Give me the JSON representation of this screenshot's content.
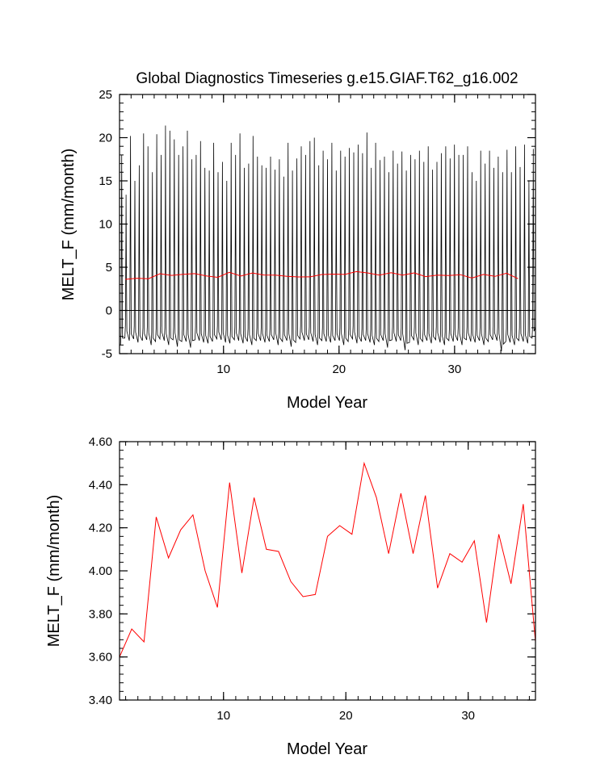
{
  "chart_data": [
    {
      "type": "line",
      "title": "Global Diagnostics Timeseries g.e15.GIAF.T62_g16.002",
      "xlabel": "Model Year",
      "ylabel": "MELT_F (mm/month)",
      "xlim": [
        1,
        37
      ],
      "ylim": [
        -5,
        25
      ],
      "xticks": [
        10,
        20,
        30
      ],
      "xtick_labels": [
        "10",
        "20",
        "30"
      ],
      "yticks": [
        -5,
        0,
        5,
        10,
        15,
        20,
        25
      ],
      "ytick_labels": [
        "-5",
        "0",
        "5",
        "10",
        "15",
        "20",
        "25"
      ],
      "zero_line": 0,
      "monthly_peaks": [
        18.0,
        13.4,
        20.2,
        15.0,
        16.8,
        20.5,
        19.0,
        16.0,
        20.4,
        18.0,
        21.4,
        20.8,
        19.8,
        18.0,
        19.0,
        20.8,
        17.5,
        18.0,
        19.6,
        16.5,
        16.2,
        19.4,
        16.0,
        17.2,
        15.0,
        19.4,
        18.0,
        20.5,
        16.5,
        17.0,
        20.2,
        17.8,
        16.8,
        16.5,
        17.8,
        16.3,
        17.5,
        15.5,
        19.4,
        16.2,
        17.6,
        19.0,
        18.0,
        19.6,
        20.0,
        16.8,
        18.5,
        17.5,
        19.4,
        16.2,
        18.5,
        17.8,
        18.8,
        18.3,
        19.2,
        18.2,
        20.6,
        16.5,
        19.4,
        17.4,
        17.8,
        16.0,
        18.5,
        17.0,
        18.4,
        16.2,
        18.0,
        17.5,
        18.5,
        17.2,
        19.0,
        16.3,
        17.2,
        18.2,
        19.0,
        17.6,
        19.2,
        18.0,
        18.0,
        19.0,
        16.0,
        15.0,
        18.5,
        17.0,
        18.5,
        16.5,
        17.8,
        16.0,
        18.6,
        16.0,
        19.0,
        16.6,
        19.2,
        15.0,
        18.7
      ],
      "monthly_troughs": [
        -4.0,
        -3.2,
        -3.5,
        -3.3,
        -3.7,
        -3.5,
        -3.4,
        -4.0,
        -3.6,
        -3.3,
        -3.5,
        -4.0,
        -3.4,
        -4.2,
        -3.6,
        -3.6,
        -4.3,
        -3.4,
        -3.5,
        -3.7,
        -3.8,
        -3.6,
        -3.3,
        -3.4,
        -3.7,
        -3.8,
        -3.4,
        -3.5,
        -3.8,
        -3.6,
        -4.0,
        -3.5,
        -3.5,
        -3.7,
        -3.6,
        -3.4,
        -4.0,
        -3.6,
        -3.5,
        -4.2,
        -3.7,
        -3.3,
        -3.5,
        -3.4,
        -3.6,
        -4.0,
        -3.5,
        -3.6,
        -3.7,
        -3.5,
        -3.5,
        -4.0,
        -3.6,
        -3.3,
        -3.8,
        -3.6,
        -3.5,
        -3.7,
        -4.0,
        -3.6,
        -3.5,
        -4.3,
        -3.4,
        -3.6,
        -3.5,
        -4.6,
        -3.7,
        -3.4,
        -4.0,
        -3.6,
        -3.5,
        -3.8,
        -3.4,
        -3.7,
        -4.0,
        -3.5,
        -3.6,
        -3.5,
        -4.0,
        -3.4,
        -3.6,
        -3.7,
        -3.5,
        -4.0,
        -3.6,
        -3.4,
        -3.5,
        -4.7,
        -3.6,
        -3.7,
        -4.0,
        -3.5,
        -3.6,
        -3.8,
        -3.2
      ],
      "series": [
        {
          "color": "#ff0000",
          "x": [
            1.5,
            2.5,
            3.5,
            4.5,
            5.5,
            6.5,
            7.5,
            8.5,
            9.5,
            10.5,
            11.5,
            12.5,
            13.5,
            14.5,
            15.5,
            16.5,
            17.5,
            18.5,
            19.5,
            20.5,
            21.5,
            22.5,
            23.5,
            24.5,
            25.5,
            26.5,
            27.5,
            28.5,
            29.5,
            30.5,
            31.5,
            32.5,
            33.5,
            34.5,
            35.5
          ],
          "values": [
            3.6,
            3.73,
            3.67,
            4.25,
            4.06,
            4.19,
            4.26,
            4.0,
            3.83,
            4.41,
            3.99,
            4.34,
            4.1,
            4.09,
            3.95,
            3.88,
            3.89,
            4.16,
            4.21,
            4.17,
            4.5,
            4.34,
            4.08,
            4.36,
            4.08,
            4.35,
            3.92,
            4.08,
            4.04,
            4.14,
            3.76,
            4.17,
            3.94,
            4.31,
            3.67
          ]
        }
      ]
    },
    {
      "type": "line",
      "title": "",
      "xlabel": "Model Year",
      "ylabel": "MELT_F (mm/month)",
      "xlim": [
        1.5,
        35.5
      ],
      "ylim": [
        3.4,
        4.6
      ],
      "xticks": [
        10,
        20,
        30
      ],
      "xtick_labels": [
        "10",
        "20",
        "30"
      ],
      "yticks": [
        3.4,
        3.6,
        3.8,
        4.0,
        4.2,
        4.4,
        4.6
      ],
      "ytick_labels": [
        "3.40",
        "3.60",
        "3.80",
        "4.00",
        "4.20",
        "4.40",
        "4.60"
      ],
      "series": [
        {
          "color": "#ff0000",
          "x": [
            1.5,
            2.5,
            3.5,
            4.5,
            5.5,
            6.5,
            7.5,
            8.5,
            9.5,
            10.5,
            11.5,
            12.5,
            13.5,
            14.5,
            15.5,
            16.5,
            17.5,
            18.5,
            19.5,
            20.5,
            21.5,
            22.5,
            23.5,
            24.5,
            25.5,
            26.5,
            27.5,
            28.5,
            29.5,
            30.5,
            31.5,
            32.5,
            33.5,
            34.5,
            35.5
          ],
          "values": [
            3.6,
            3.73,
            3.67,
            4.25,
            4.06,
            4.19,
            4.26,
            4.0,
            3.83,
            4.41,
            3.99,
            4.34,
            4.1,
            4.09,
            3.95,
            3.88,
            3.89,
            4.16,
            4.21,
            4.17,
            4.5,
            4.34,
            4.08,
            4.36,
            4.08,
            4.35,
            3.92,
            4.08,
            4.04,
            4.14,
            3.76,
            4.17,
            3.94,
            4.31,
            3.67
          ]
        }
      ]
    }
  ]
}
